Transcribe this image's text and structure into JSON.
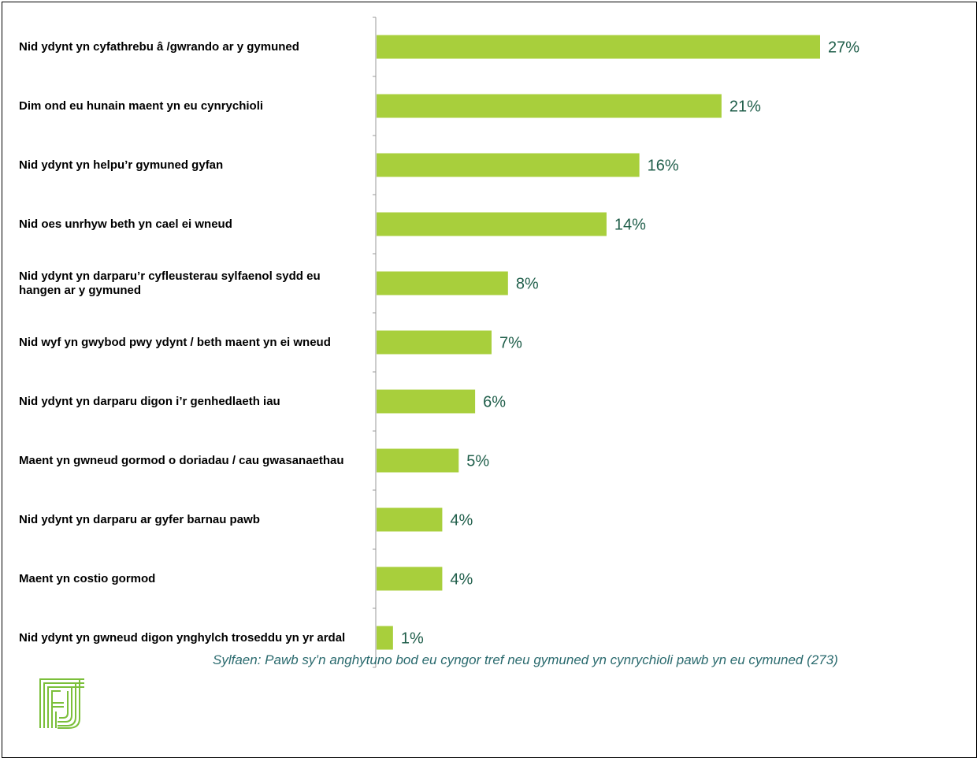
{
  "chart_data": {
    "type": "bar",
    "orientation": "horizontal",
    "categories": [
      "Nid ydynt yn cyfathrebu â /gwrando ar y gymuned",
      "Dim ond eu hunain maent yn eu cynrychioli",
      "Nid ydynt yn helpu’r gymuned gyfan",
      "Nid oes unrhyw beth yn cael ei wneud",
      "Nid ydynt yn darparu’r cyfleusterau sylfaenol sydd eu hangen ar y gymuned",
      "Nid wyf yn gwybod pwy ydynt / beth maent yn ei wneud",
      "Nid ydynt yn darparu digon i’r genhedlaeth iau",
      "Maent yn gwneud gormod o doriadau / cau gwasanaethau",
      "Nid ydynt yn darparu ar gyfer barnau pawb",
      "Maent yn costio gormod",
      "Nid ydynt yn gwneud digon ynghylch troseddu yn yr ardal"
    ],
    "values": [
      27,
      21,
      16,
      14,
      8,
      7,
      6,
      5,
      4,
      4,
      1
    ],
    "value_labels": [
      "27%",
      "21%",
      "16%",
      "14%",
      "8%",
      "7%",
      "6%",
      "5%",
      "4%",
      "4%",
      "1%"
    ],
    "xlim": [
      0,
      27
    ],
    "grid": false,
    "colors": {
      "bar": "#a8cf3c",
      "value_label": "#1f5e4a",
      "axis": "#9a9a9a"
    }
  },
  "footnote": "Sylfaen: Pawb sy’n anghytuno bod eu cyngor tref neu gymuned yn cynrychioli pawb yn eu cymuned (273)",
  "logo": {
    "icon": "organisation-logo-icon",
    "color": "#7bbf3a"
  }
}
